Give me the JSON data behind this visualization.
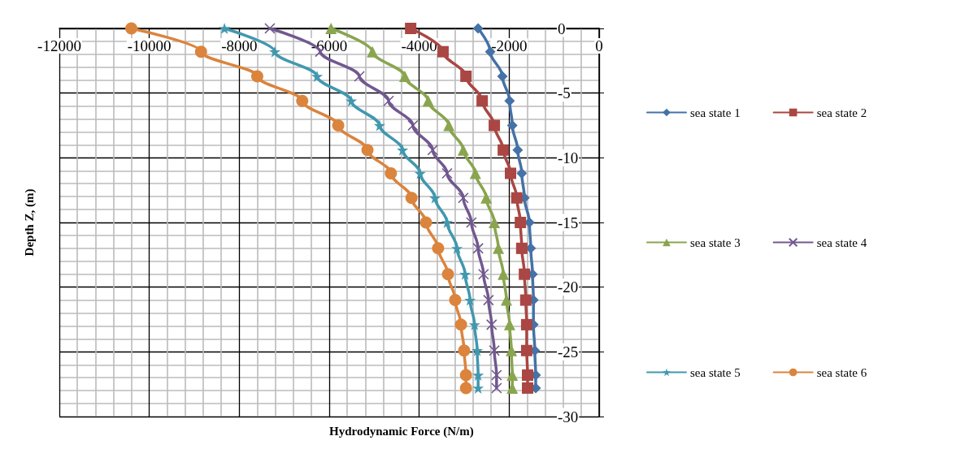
{
  "chart_data": {
    "type": "line",
    "xlabel": "Hydrodynamic Force (N/m)",
    "ylabel": "Depth Z, (m)",
    "xlim": [
      -12000,
      0
    ],
    "xticks": [
      -12000,
      -10000,
      -8000,
      -6000,
      -4000,
      -2000,
      0
    ],
    "ylim": [
      -30,
      0
    ],
    "yticks": [
      -30,
      -25,
      -20,
      -15,
      -10,
      -5,
      0
    ],
    "grid": true,
    "legend": "right",
    "series": [
      {
        "name": "sea state 1",
        "color": "#4572a7",
        "marker": "diamond",
        "x": [
          -2690,
          -2420,
          -2150,
          -1990,
          -1930,
          -1810,
          -1720,
          -1660,
          -1550,
          -1520,
          -1480,
          -1460,
          -1460,
          -1430,
          -1410,
          -1410
        ],
        "values": [
          0,
          -1.8,
          -3.7,
          -5.6,
          -7.5,
          -9.4,
          -11.2,
          -13.1,
          -15,
          -17,
          -19,
          -21,
          -22.9,
          -24.9,
          -26.8,
          -27.8
        ]
      },
      {
        "name": "sea state 2",
        "color": "#aa4643",
        "marker": "square",
        "x": [
          -4190,
          -3470,
          -2960,
          -2600,
          -2330,
          -2130,
          -1970,
          -1830,
          -1750,
          -1720,
          -1660,
          -1630,
          -1610,
          -1610,
          -1590,
          -1590
        ],
        "values": [
          0,
          -1.8,
          -3.7,
          -5.6,
          -7.5,
          -9.4,
          -11.2,
          -13.1,
          -15,
          -17,
          -19,
          -21,
          -22.9,
          -24.9,
          -26.8,
          -27.8
        ]
      },
      {
        "name": "sea state 3",
        "color": "#89a54e",
        "marker": "triangle",
        "x": [
          -5960,
          -5040,
          -4320,
          -3800,
          -3340,
          -3020,
          -2750,
          -2510,
          -2330,
          -2240,
          -2130,
          -2060,
          -1990,
          -1950,
          -1930,
          -1930
        ],
        "values": [
          0,
          -1.8,
          -3.7,
          -5.6,
          -7.5,
          -9.4,
          -11.2,
          -13.1,
          -15,
          -17,
          -19,
          -21,
          -22.9,
          -24.9,
          -26.8,
          -27.8
        ]
      },
      {
        "name": "sea state 4",
        "color": "#71588f",
        "marker": "cross",
        "x": [
          -7320,
          -6200,
          -5330,
          -4680,
          -4140,
          -3700,
          -3380,
          -3020,
          -2840,
          -2690,
          -2570,
          -2460,
          -2390,
          -2330,
          -2280,
          -2280
        ],
        "values": [
          0,
          -1.8,
          -3.7,
          -5.6,
          -7.5,
          -9.4,
          -11.2,
          -13.1,
          -15,
          -17,
          -19,
          -21,
          -22.9,
          -24.9,
          -26.8,
          -27.8
        ]
      },
      {
        "name": "sea state 5",
        "color": "#4198af",
        "marker": "star",
        "x": [
          -8330,
          -7210,
          -6270,
          -5510,
          -4880,
          -4370,
          -3980,
          -3650,
          -3380,
          -3160,
          -2980,
          -2870,
          -2770,
          -2710,
          -2690,
          -2690
        ],
        "values": [
          0,
          -1.8,
          -3.7,
          -5.6,
          -7.5,
          -9.4,
          -11.2,
          -13.1,
          -15,
          -17,
          -19,
          -21,
          -22.9,
          -24.9,
          -26.8,
          -27.8
        ]
      },
      {
        "name": "sea state 6",
        "color": "#db843d",
        "marker": "circle",
        "x": [
          -10400,
          -8850,
          -7600,
          -6600,
          -5800,
          -5150,
          -4630,
          -4170,
          -3850,
          -3580,
          -3360,
          -3200,
          -3070,
          -3000,
          -2960,
          -2960
        ],
        "values": [
          0,
          -1.8,
          -3.7,
          -5.6,
          -7.5,
          -9.4,
          -11.2,
          -13.1,
          -15,
          -17,
          -19,
          -21,
          -22.9,
          -24.9,
          -26.8,
          -27.8
        ]
      }
    ]
  }
}
